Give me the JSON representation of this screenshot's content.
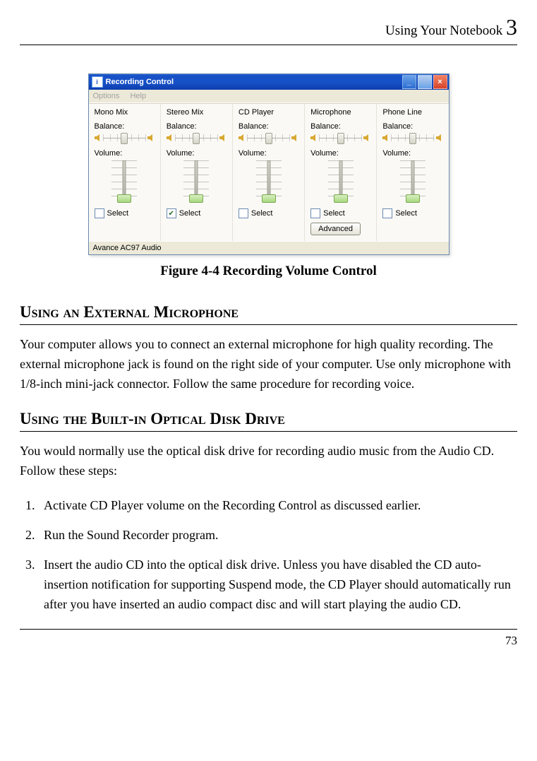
{
  "header": {
    "title": "Using Your Notebook",
    "chapter": "3"
  },
  "window": {
    "title": "Recording Control",
    "titlebar_bg_start": "#2a6bd8",
    "titlebar_bg_end": "#0d3eae",
    "menu": {
      "options": "Options",
      "help": "Help"
    },
    "buttons": {
      "min": "_",
      "max": "□",
      "close": "×"
    },
    "channels": [
      {
        "name": "Mono Mix",
        "balance_label": "Balance:",
        "volume_label": "Volume:",
        "select_label": "Select",
        "selected": false,
        "has_advanced": false
      },
      {
        "name": "Stereo Mix",
        "balance_label": "Balance:",
        "volume_label": "Volume:",
        "select_label": "Select",
        "selected": true,
        "has_advanced": false
      },
      {
        "name": "CD Player",
        "balance_label": "Balance:",
        "volume_label": "Volume:",
        "select_label": "Select",
        "selected": false,
        "has_advanced": false
      },
      {
        "name": "Microphone",
        "balance_label": "Balance:",
        "volume_label": "Volume:",
        "select_label": "Select",
        "selected": false,
        "has_advanced": true,
        "advanced_label": "Advanced"
      },
      {
        "name": "Phone Line",
        "balance_label": "Balance:",
        "volume_label": "Volume:",
        "select_label": "Select",
        "selected": false,
        "has_advanced": false
      }
    ],
    "status": "Avance AC97 Audio"
  },
  "figure_caption": "Figure 4-4 Recording Volume Control",
  "section1": {
    "heading": "Using an External Microphone",
    "body": "Your computer allows you to connect an external microphone for high quality recording. The external microphone jack is found on the right side of your computer. Use only microphone with 1/8-inch mini-jack connector. Follow the same procedure for recording voice."
  },
  "section2": {
    "heading": "Using the Built-in Optical Disk Drive",
    "intro": "You would normally use the optical disk drive for recording audio music from the Audio CD. Follow these steps:",
    "steps": [
      "Activate CD Player volume on the Recording Control as discussed earlier.",
      "Run the Sound Recorder program.",
      "Insert the audio CD into the optical disk drive. Unless you have disabled the CD auto-insertion notification for supporting Suspend mode, the CD Player should automatically run after you have inserted an audio compact disc and will start playing the audio CD."
    ]
  },
  "page_number": "73",
  "palette": {
    "page_bg": "#ffffff",
    "text": "#000000",
    "window_face": "#ece9d8",
    "panel_bg": "#faf9f5",
    "slider_thumb_green": "#a8d880",
    "speaker_color": "#d8a830"
  }
}
